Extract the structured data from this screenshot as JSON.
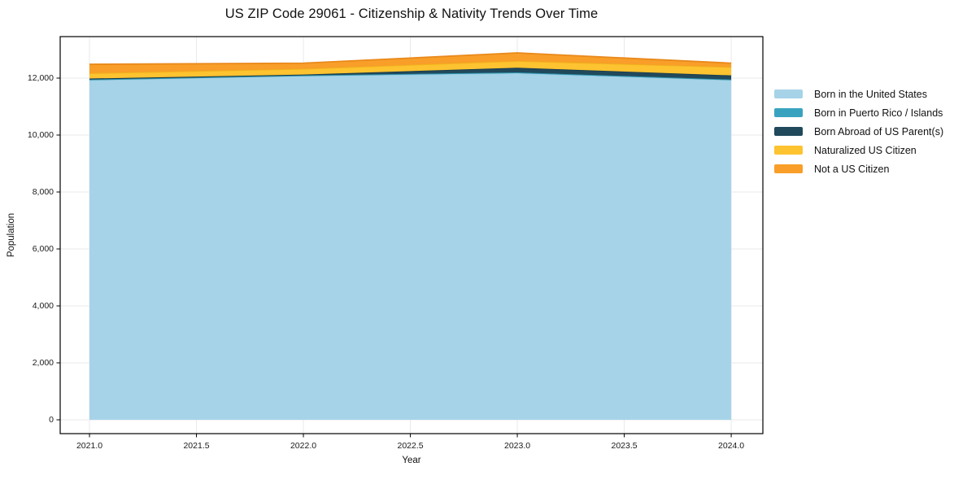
{
  "chart_data": {
    "type": "area",
    "stacked": true,
    "title": "US ZIP Code 29061 - Citizenship & Nativity Trends Over Time",
    "xlabel": "Year",
    "ylabel": "Population",
    "x": [
      2021,
      2022,
      2023,
      2024
    ],
    "series": [
      {
        "name": "Born in the United States",
        "color": "#a6d3e8",
        "edge": "#97cbe2",
        "values": [
          11930,
          12080,
          12170,
          11930
        ]
      },
      {
        "name": "Born in Puerto Rico / Islands",
        "color": "#39a3bf",
        "edge": "#2e94ad",
        "values": [
          20,
          15,
          30,
          20
        ]
      },
      {
        "name": "Born Abroad of US Parent(s)",
        "color": "#21495c",
        "edge": "#193c4d",
        "values": [
          35,
          30,
          165,
          145
        ]
      },
      {
        "name": "Naturalized US Citizen",
        "color": "#fdc330",
        "edge": "#f0b41c",
        "values": [
          185,
          200,
          235,
          290
        ]
      },
      {
        "name": "Not a US Citizen",
        "color": "#f89e29",
        "edge": "#e9891b",
        "values": [
          315,
          200,
          285,
          140
        ]
      }
    ],
    "xticks": [
      2021.0,
      2021.5,
      2022.0,
      2022.5,
      2023.0,
      2023.5,
      2024.0
    ],
    "xtick_labels": [
      "2021.0",
      "2021.5",
      "2022.0",
      "2022.5",
      "2023.0",
      "2023.5",
      "2024.0"
    ],
    "yticks": [
      0,
      2000,
      4000,
      6000,
      8000,
      10000,
      12000
    ],
    "ytick_labels": [
      "0",
      "2,000",
      "4,000",
      "6,000",
      "8,000",
      "10,000",
      "12,000"
    ],
    "xlim": [
      2020.863,
      2024.148
    ],
    "ylim": [
      -486,
      13457
    ],
    "grid": true,
    "grid_color": "#e9e9e9",
    "axis_color": "#000000",
    "text_color": "#1a1a1a",
    "legend_position": "right"
  }
}
